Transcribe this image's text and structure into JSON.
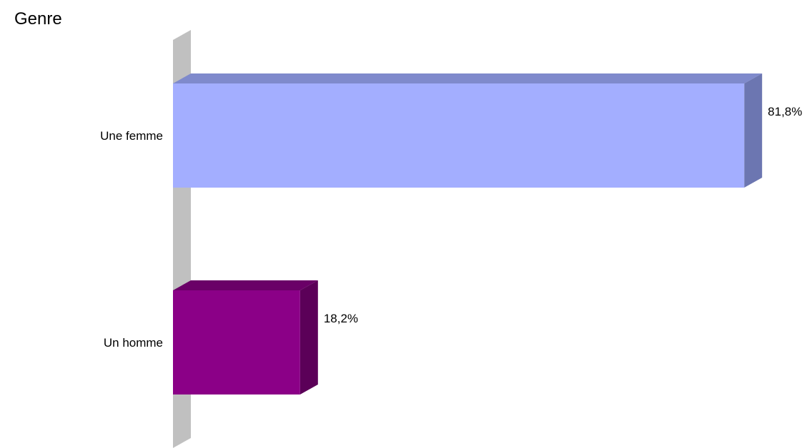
{
  "chart_data": {
    "type": "bar",
    "orientation": "horizontal",
    "title": "Genre",
    "categories": [
      "Une femme",
      "Un homme"
    ],
    "values": [
      81.8,
      18.2
    ],
    "value_labels": [
      "81,8%",
      "18,2%"
    ],
    "xlim": [
      0,
      100
    ],
    "grid": false,
    "legend": "none",
    "colors": {
      "Une femme": {
        "front": "#a3aeff",
        "top": "#7f8acc",
        "side": "#6c76b1"
      },
      "Un homme": {
        "front": "#8b0087",
        "top": "#6a0067",
        "side": "#5b0058"
      },
      "axis_wall": {
        "front": "#c0c0c0",
        "top": "#d8d8d8"
      }
    }
  }
}
